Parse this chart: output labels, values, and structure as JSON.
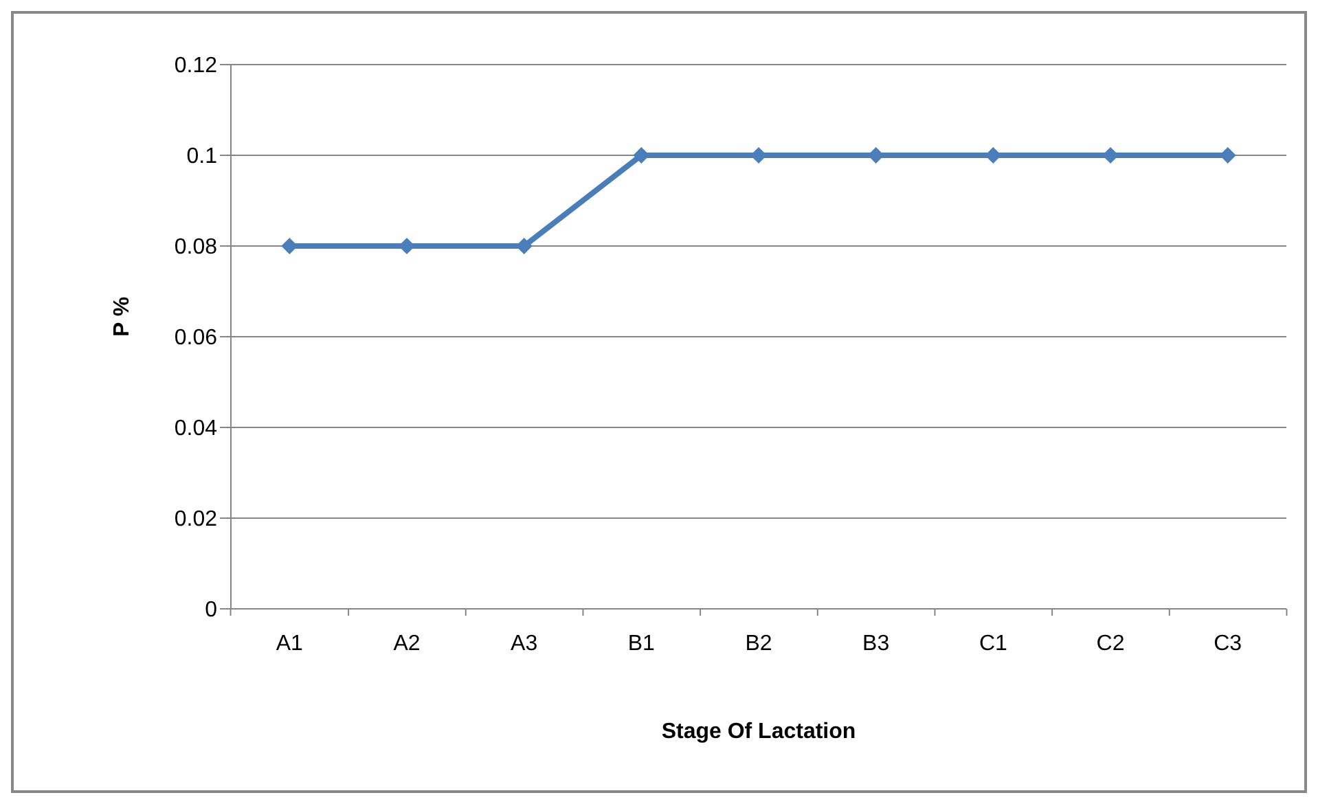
{
  "chart_data": {
    "type": "line",
    "xlabel": "Stage Of Lactation",
    "ylabel": "P %",
    "categories": [
      "A1",
      "A2",
      "A3",
      "B1",
      "B2",
      "B3",
      "C1",
      "C2",
      "C3"
    ],
    "series": [
      {
        "color": "#4a7ebb",
        "values": [
          0.08,
          0.08,
          0.08,
          0.1,
          0.1,
          0.1,
          0.1,
          0.1,
          0.1
        ]
      }
    ],
    "ylim": [
      0,
      0.12
    ],
    "yticks": [
      0,
      0.02,
      0.04,
      0.06,
      0.08,
      0.1,
      0.12
    ],
    "grid": "y",
    "legend": false,
    "marker": "diamond",
    "line_style": "solid"
  }
}
